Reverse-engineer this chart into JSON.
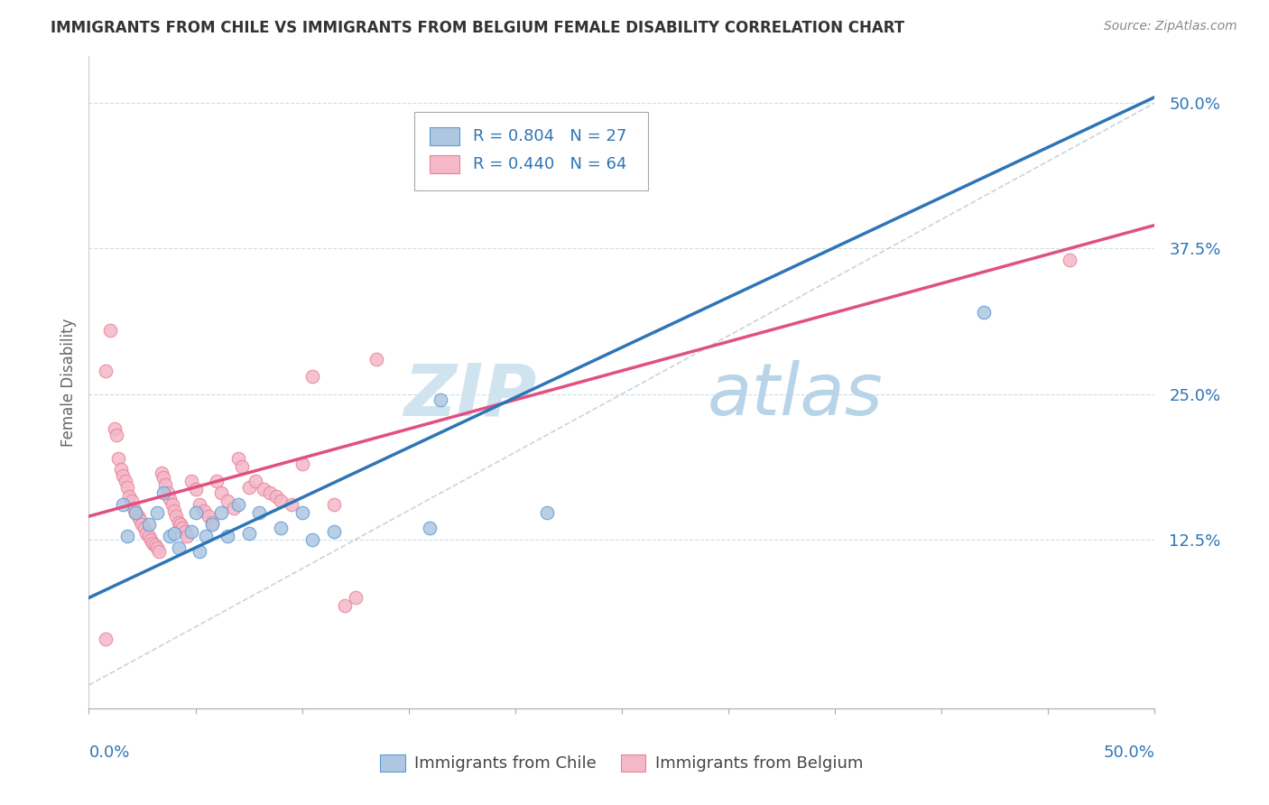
{
  "title": "IMMIGRANTS FROM CHILE VS IMMIGRANTS FROM BELGIUM FEMALE DISABILITY CORRELATION CHART",
  "source": "Source: ZipAtlas.com",
  "ylabel": "Female Disability",
  "ytick_labels": [
    "12.5%",
    "25.0%",
    "37.5%",
    "50.0%"
  ],
  "ytick_values": [
    0.125,
    0.25,
    0.375,
    0.5
  ],
  "xlim": [
    0.0,
    0.5
  ],
  "ylim": [
    -0.02,
    0.54
  ],
  "legend_r_chile": "R = 0.804",
  "legend_n_chile": "N = 27",
  "legend_r_belgium": "R = 0.440",
  "legend_n_belgium": "N = 64",
  "chile_fill": "#aec6e0",
  "chile_edge": "#5b9bd5",
  "chile_line_color": "#2e75b6",
  "belgium_fill": "#f4b8c8",
  "belgium_edge": "#e8829a",
  "belgium_line_color": "#e05080",
  "text_color": "#2e75b6",
  "watermark_zip_color": "#d0e4f0",
  "watermark_atlas_color": "#b8d4e8",
  "grid_color": "#d0dde8",
  "chile_line_x": [
    0.0,
    0.5
  ],
  "chile_line_y": [
    0.075,
    0.505
  ],
  "belgium_line_x": [
    0.0,
    0.5
  ],
  "belgium_line_y": [
    0.145,
    0.395
  ],
  "diag_line_x": [
    0.0,
    0.5
  ],
  "diag_line_y": [
    0.0,
    0.5
  ],
  "chile_points": [
    [
      0.016,
      0.155
    ],
    [
      0.018,
      0.128
    ],
    [
      0.022,
      0.148
    ],
    [
      0.028,
      0.138
    ],
    [
      0.032,
      0.148
    ],
    [
      0.035,
      0.165
    ],
    [
      0.038,
      0.128
    ],
    [
      0.04,
      0.13
    ],
    [
      0.042,
      0.118
    ],
    [
      0.048,
      0.132
    ],
    [
      0.05,
      0.148
    ],
    [
      0.052,
      0.115
    ],
    [
      0.055,
      0.128
    ],
    [
      0.058,
      0.138
    ],
    [
      0.062,
      0.148
    ],
    [
      0.065,
      0.128
    ],
    [
      0.07,
      0.155
    ],
    [
      0.075,
      0.13
    ],
    [
      0.08,
      0.148
    ],
    [
      0.09,
      0.135
    ],
    [
      0.1,
      0.148
    ],
    [
      0.105,
      0.125
    ],
    [
      0.115,
      0.132
    ],
    [
      0.16,
      0.135
    ],
    [
      0.165,
      0.245
    ],
    [
      0.215,
      0.148
    ],
    [
      0.42,
      0.32
    ]
  ],
  "belgium_points": [
    [
      0.008,
      0.27
    ],
    [
      0.01,
      0.305
    ],
    [
      0.012,
      0.22
    ],
    [
      0.013,
      0.215
    ],
    [
      0.014,
      0.195
    ],
    [
      0.015,
      0.185
    ],
    [
      0.016,
      0.18
    ],
    [
      0.017,
      0.175
    ],
    [
      0.018,
      0.17
    ],
    [
      0.019,
      0.162
    ],
    [
      0.02,
      0.158
    ],
    [
      0.021,
      0.152
    ],
    [
      0.022,
      0.148
    ],
    [
      0.023,
      0.145
    ],
    [
      0.024,
      0.142
    ],
    [
      0.025,
      0.138
    ],
    [
      0.026,
      0.135
    ],
    [
      0.027,
      0.13
    ],
    [
      0.028,
      0.128
    ],
    [
      0.029,
      0.125
    ],
    [
      0.03,
      0.122
    ],
    [
      0.031,
      0.12
    ],
    [
      0.032,
      0.118
    ],
    [
      0.033,
      0.115
    ],
    [
      0.034,
      0.182
    ],
    [
      0.035,
      0.178
    ],
    [
      0.036,
      0.172
    ],
    [
      0.037,
      0.165
    ],
    [
      0.038,
      0.16
    ],
    [
      0.039,
      0.155
    ],
    [
      0.04,
      0.15
    ],
    [
      0.041,
      0.145
    ],
    [
      0.042,
      0.14
    ],
    [
      0.043,
      0.138
    ],
    [
      0.044,
      0.135
    ],
    [
      0.045,
      0.132
    ],
    [
      0.046,
      0.128
    ],
    [
      0.048,
      0.175
    ],
    [
      0.05,
      0.168
    ],
    [
      0.052,
      0.155
    ],
    [
      0.054,
      0.15
    ],
    [
      0.056,
      0.145
    ],
    [
      0.058,
      0.14
    ],
    [
      0.06,
      0.175
    ],
    [
      0.062,
      0.165
    ],
    [
      0.065,
      0.158
    ],
    [
      0.068,
      0.152
    ],
    [
      0.07,
      0.195
    ],
    [
      0.072,
      0.188
    ],
    [
      0.075,
      0.17
    ],
    [
      0.078,
      0.175
    ],
    [
      0.082,
      0.168
    ],
    [
      0.085,
      0.165
    ],
    [
      0.088,
      0.162
    ],
    [
      0.09,
      0.158
    ],
    [
      0.095,
      0.155
    ],
    [
      0.1,
      0.19
    ],
    [
      0.105,
      0.265
    ],
    [
      0.115,
      0.155
    ],
    [
      0.12,
      0.068
    ],
    [
      0.125,
      0.075
    ],
    [
      0.135,
      0.28
    ],
    [
      0.46,
      0.365
    ],
    [
      0.008,
      0.04
    ]
  ]
}
